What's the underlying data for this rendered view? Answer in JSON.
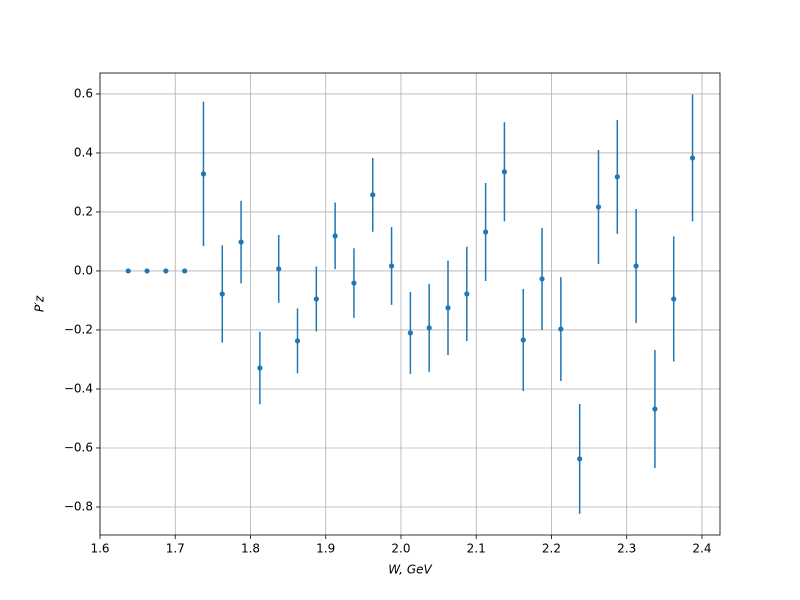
{
  "chart_data": {
    "type": "errorbar",
    "x_label": "W, GeV",
    "y_label": "P′z",
    "x": [
      1.6375,
      1.6625,
      1.6875,
      1.7125,
      1.7375,
      1.7625,
      1.7875,
      1.8125,
      1.8375,
      1.8625,
      1.8875,
      1.9125,
      1.9375,
      1.9625,
      1.9875,
      2.0125,
      2.0375,
      2.0625,
      2.0875,
      2.1125,
      2.1375,
      2.1625,
      2.1875,
      2.2125,
      2.2375,
      2.2625,
      2.2875,
      2.3125,
      2.3375,
      2.3625,
      2.3875
    ],
    "values": [
      0,
      0,
      0,
      0,
      0.329,
      -0.078,
      0.098,
      -0.329,
      0.007,
      -0.237,
      -0.095,
      0.119,
      -0.041,
      0.258,
      0.017,
      -0.21,
      -0.193,
      -0.125,
      -0.078,
      0.132,
      0.336,
      -0.234,
      -0.027,
      -0.197,
      -0.637,
      0.217,
      0.319,
      0.017,
      -0.468,
      -0.095,
      0.383
    ],
    "errors": [
      0,
      0,
      0,
      0,
      0.245,
      0.165,
      0.14,
      0.123,
      0.115,
      0.11,
      0.11,
      0.113,
      0.118,
      0.125,
      0.132,
      0.139,
      0.149,
      0.16,
      0.16,
      0.166,
      0.168,
      0.173,
      0.173,
      0.176,
      0.186,
      0.193,
      0.193,
      0.193,
      0.2,
      0.212,
      0.215
    ],
    "color": "#1f77b4",
    "xlim": [
      1.6,
      2.424
    ],
    "ylim": [
      -0.895,
      0.671
    ],
    "xticks": [
      1.6,
      1.7,
      1.8,
      1.9,
      {
        "value": 2,
        "label": "2.0"
      },
      2.1,
      2.2,
      2.3,
      2.4
    ],
    "yticks": [
      {
        "value": -0.8,
        "label": "−0.8"
      },
      {
        "value": -0.6,
        "label": "−0.6"
      },
      {
        "value": -0.4,
        "label": "−0.4"
      },
      {
        "value": -0.2,
        "label": "−0.2"
      },
      {
        "value": 0,
        "label": "0.0"
      },
      0.2,
      0.4,
      0.6
    ],
    "grid": true
  }
}
